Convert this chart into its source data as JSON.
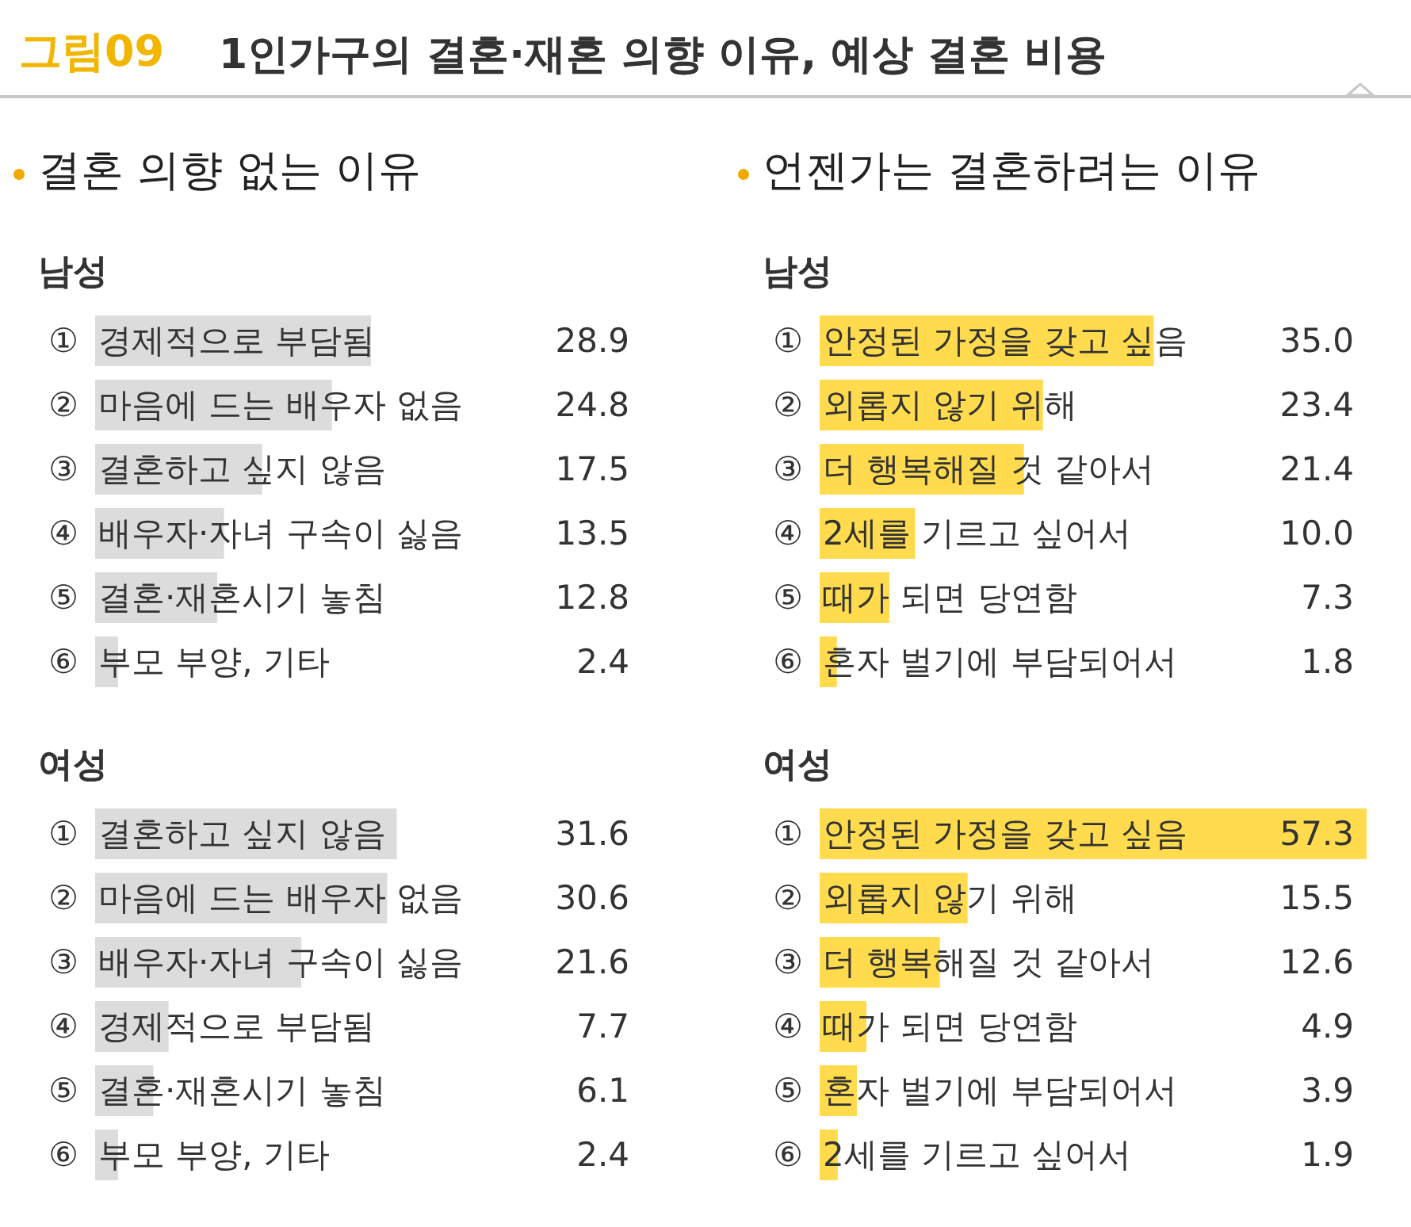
{
  "chart_data": [
    {
      "type": "bar",
      "orientation": "horizontal",
      "title": "남성",
      "annotations": [
        "그림09",
        "1인가구의 결혼·재혼 의향 이유, 예상 결혼 비용",
        "결혼 의향 없는 이유"
      ],
      "categories": [
        "① 경제적으로 부담됨",
        "② 마음에 드는 배우자 없음",
        "③ 결혼하고 싶지 않음",
        "④ 배우자·자녀 구속이 싫음",
        "⑤ 결혼·재혼시기 놓침",
        "⑥ 부모 부양, 기타"
      ],
      "values": [
        28.9,
        24.8,
        17.5,
        13.5,
        12.8,
        2.4
      ],
      "color": "#dcdcdc",
      "data_labels": true
    },
    {
      "type": "bar",
      "orientation": "horizontal",
      "title": "여성",
      "categories": [
        "① 결혼하고 싶지 않음",
        "② 마음에 드는 배우자 없음",
        "③ 배우자·자녀 구속이 싫음",
        "④ 경제적으로 부담됨",
        "⑤ 결혼·재혼시기 놓침",
        "⑥ 부모 부양, 기타"
      ],
      "values": [
        31.6,
        30.6,
        21.6,
        7.7,
        6.1,
        2.4
      ],
      "color": "#dcdcdc",
      "data_labels": true
    },
    {
      "type": "bar",
      "orientation": "horizontal",
      "title": "남성",
      "annotations": [
        "언젠가는 결혼하려는 이유"
      ],
      "categories": [
        "① 안정된 가정을 갖고 싶음",
        "② 외롭지 않기 위해",
        "③ 더 행복해질 것 같아서",
        "④ 2세를 기르고 싶어서",
        "⑤ 때가 되면 당연함",
        "⑥ 혼자 벌기에 부담되어서"
      ],
      "values": [
        35.0,
        23.4,
        21.4,
        10.0,
        7.3,
        1.8
      ],
      "value_labels": [
        "35.0",
        "23.4",
        "21.4",
        "10.0",
        "7.3",
        "1.8"
      ],
      "color": "#ffdb4d"
    },
    {
      "type": "bar",
      "orientation": "horizontal",
      "title": "여성",
      "categories": [
        "① 안정된 가정을 갖고 싶음",
        "② 외롭지 않기 위해",
        "③ 더 행복해질 것 같아서",
        "④ 때가 되면 당연함",
        "⑤ 혼자 벌기에 부담되어서",
        "⑥ 2세를 기르고 싶어서"
      ],
      "values": [
        57.3,
        15.5,
        12.6,
        4.9,
        3.9,
        1.9
      ],
      "color": "#ffdb4d",
      "data_labels": true
    }
  ]
}
